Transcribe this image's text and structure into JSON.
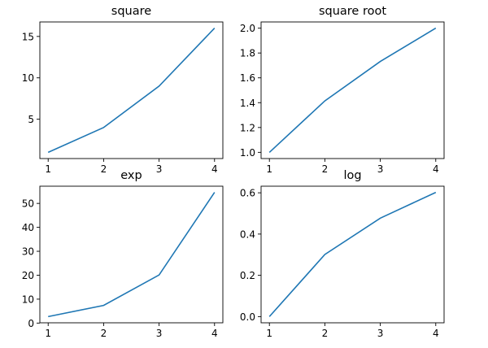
{
  "chart_data": [
    {
      "type": "line",
      "title": "square",
      "x": [
        1,
        2,
        3,
        4
      ],
      "values": [
        1,
        4,
        9,
        16
      ],
      "xticks": [
        1,
        2,
        3,
        4
      ],
      "yticks": [
        5,
        10,
        15
      ],
      "ytick_labels": [
        "5",
        "10",
        "15"
      ],
      "xlim": [
        0.85,
        4.15
      ],
      "ylim": [
        0.25,
        16.75
      ],
      "color": "#1f77b4",
      "grid": false
    },
    {
      "type": "line",
      "title": "square root",
      "x": [
        1,
        2,
        3,
        4
      ],
      "values": [
        1,
        1.414,
        1.732,
        2
      ],
      "xticks": [
        1,
        2,
        3,
        4
      ],
      "yticks": [
        1.0,
        1.2,
        1.4,
        1.6,
        1.8,
        2.0
      ],
      "ytick_labels": [
        "1.0",
        "1.2",
        "1.4",
        "1.6",
        "1.8",
        "2.0"
      ],
      "xlim": [
        0.85,
        4.15
      ],
      "ylim": [
        0.95,
        2.05
      ],
      "color": "#1f77b4",
      "grid": false
    },
    {
      "type": "line",
      "title": "exp",
      "x": [
        1,
        2,
        3,
        4
      ],
      "values": [
        2.718,
        7.389,
        20.086,
        54.598
      ],
      "xticks": [
        1,
        2,
        3,
        4
      ],
      "yticks": [
        0,
        10,
        20,
        30,
        40,
        50
      ],
      "ytick_labels": [
        "0",
        "10",
        "20",
        "30",
        "40",
        "50"
      ],
      "xlim": [
        0.85,
        4.15
      ],
      "ylim": [
        0.12,
        57.19
      ],
      "color": "#1f77b4",
      "grid": false
    },
    {
      "type": "line",
      "title": "log",
      "x": [
        1,
        2,
        3,
        4
      ],
      "values": [
        0,
        0.301,
        0.477,
        0.602
      ],
      "xticks": [
        1,
        2,
        3,
        4
      ],
      "yticks": [
        0.0,
        0.2,
        0.4,
        0.6
      ],
      "ytick_labels": [
        "0.0",
        "0.2",
        "0.4",
        "0.6"
      ],
      "xlim": [
        0.85,
        4.15
      ],
      "ylim": [
        -0.03,
        0.632
      ],
      "color": "#1f77b4",
      "grid": false
    }
  ]
}
